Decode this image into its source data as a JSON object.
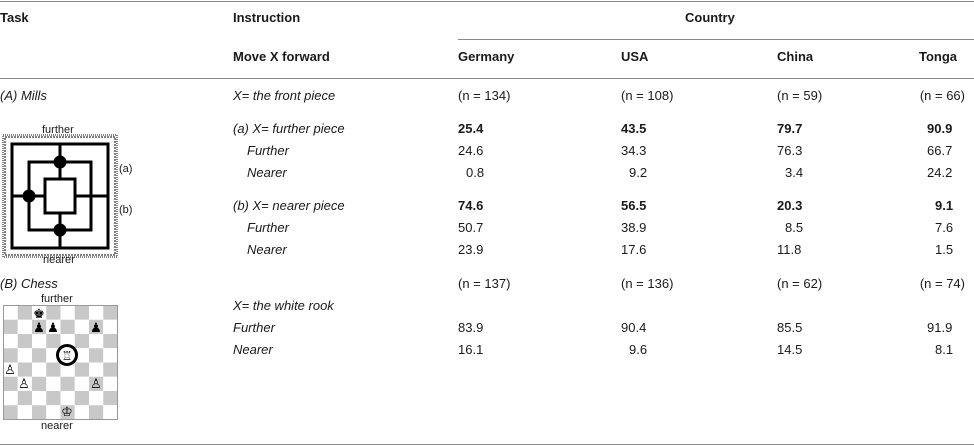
{
  "header": {
    "task": "Task",
    "instruction": "Instruction",
    "country": "Country",
    "instruction_sub": "Move X forward",
    "countries": [
      "Germany",
      "USA",
      "China",
      "Tonga"
    ]
  },
  "mills": {
    "label": "(A) Mills",
    "instruction": "X= the front piece",
    "n": [
      "(n = 134)",
      "(n = 108)",
      "(n = 59)",
      "(n = 66)"
    ],
    "diagram": {
      "top": "further",
      "bottom": "nearer",
      "mark_a": "(a)",
      "mark_b": "(b)"
    },
    "a": {
      "label": "(a) X= further piece",
      "total": [
        "25.4",
        "43.5",
        "79.7",
        "90.9"
      ],
      "further_label": "Further",
      "further": [
        "24.6",
        "34.3",
        "76.3",
        "66.7"
      ],
      "nearer_label": "Nearer",
      "nearer": [
        "0.8",
        "9.2",
        "3.4",
        "24.2"
      ]
    },
    "b": {
      "label": "(b) X= nearer piece",
      "total": [
        "74.6",
        "56.5",
        "20.3",
        "9.1"
      ],
      "further_label": "Further",
      "further": [
        "50.7",
        "38.9",
        "8.5",
        "7.6"
      ],
      "nearer_label": "Nearer",
      "nearer": [
        "23.9",
        "17.6",
        "11.8",
        "1.5"
      ]
    }
  },
  "chess": {
    "label": "(B) Chess",
    "instruction": "X= the white rook",
    "n": [
      "(n = 137)",
      "(n = 136)",
      "(n = 62)",
      "(n = 74)"
    ],
    "diagram": {
      "top": "further",
      "bottom": "nearer"
    },
    "further_label": "Further",
    "further": [
      "83.9",
      "90.4",
      "85.5",
      "91.9"
    ],
    "nearer_label": "Nearer",
    "nearer": [
      "16.1",
      "9.6",
      "14.5",
      "8.1"
    ]
  },
  "colors": {
    "rule": "#8a8a8a",
    "checker_dark": "#c8c8c8",
    "checker_light": "#ffffff"
  }
}
